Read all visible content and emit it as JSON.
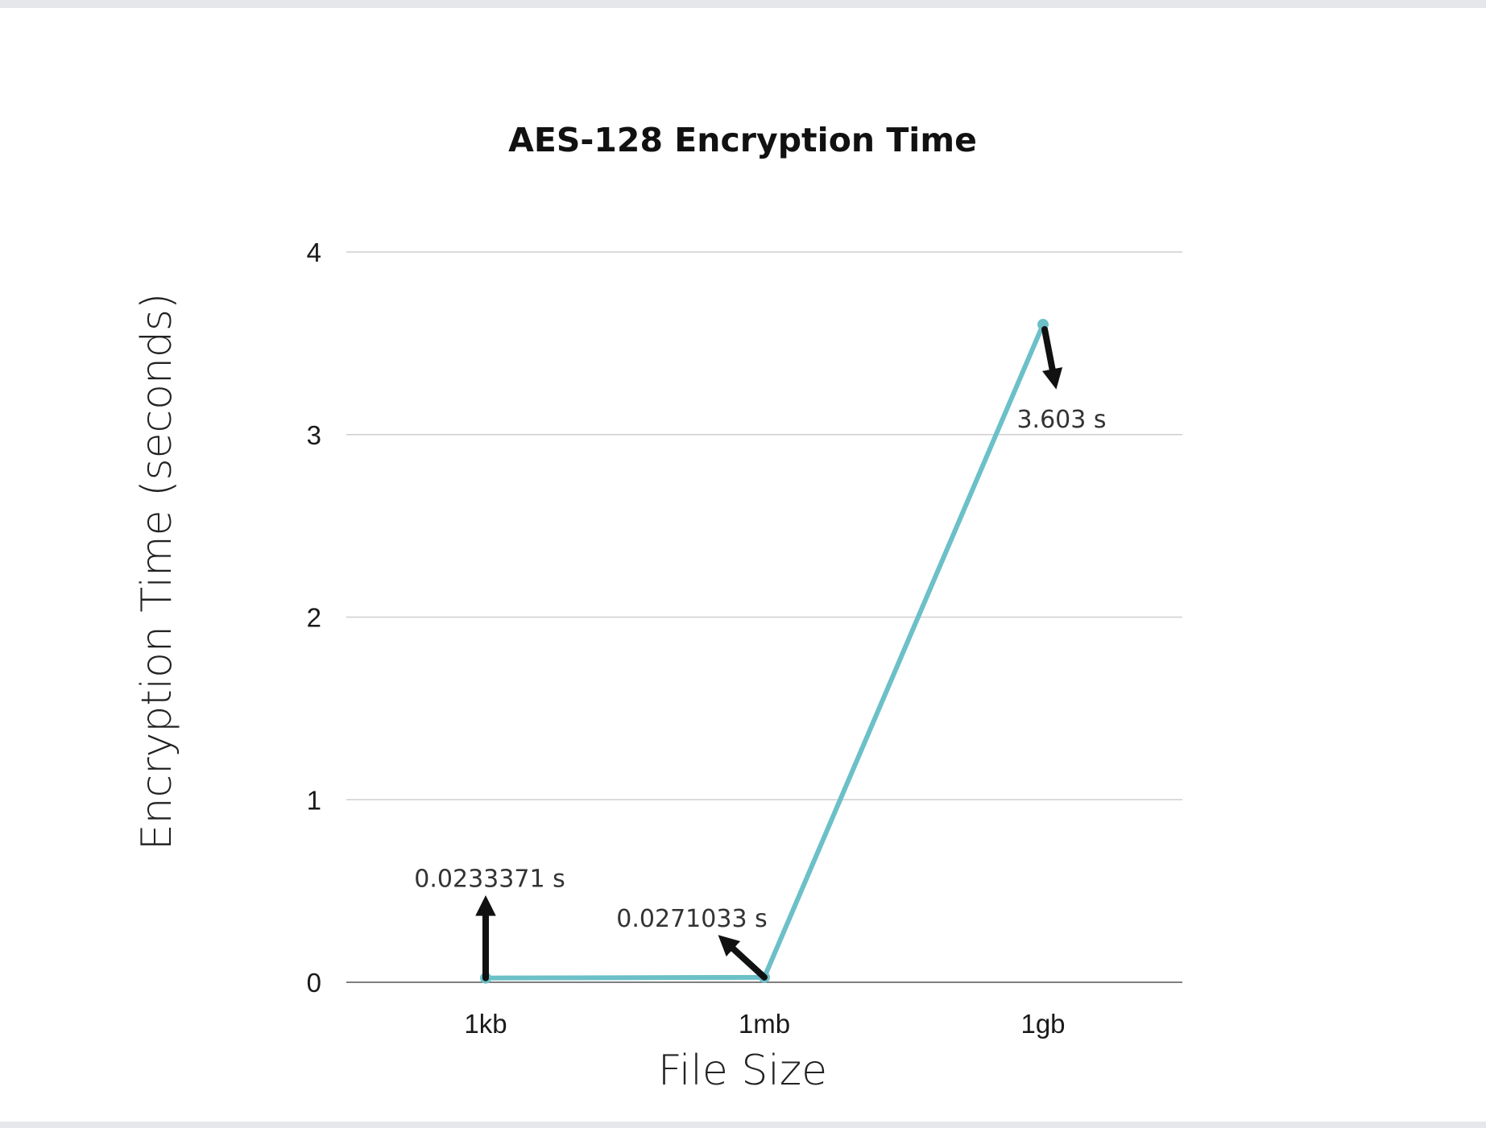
{
  "chart_data": {
    "type": "line",
    "title": "AES-128 Encryption Time",
    "xlabel": "File Size",
    "ylabel": "Encryption Time (seconds)",
    "categories": [
      "1kb",
      "1mb",
      "1gb"
    ],
    "series": [
      {
        "values": [
          0.0233371,
          0.0271033,
          3.603
        ],
        "color": "#6cc0c8"
      }
    ],
    "ylim": [
      0,
      4
    ],
    "yticks": [
      0,
      1,
      2,
      3,
      4
    ],
    "grid": true,
    "legend": "none",
    "annotations": [
      {
        "category": "1kb",
        "text": "0.0233371 s",
        "arrow": "up"
      },
      {
        "category": "1mb",
        "text": "0.0271033 s",
        "arrow": "up-left"
      },
      {
        "category": "1gb",
        "text": "3.603 s",
        "arrow": "down"
      }
    ]
  }
}
